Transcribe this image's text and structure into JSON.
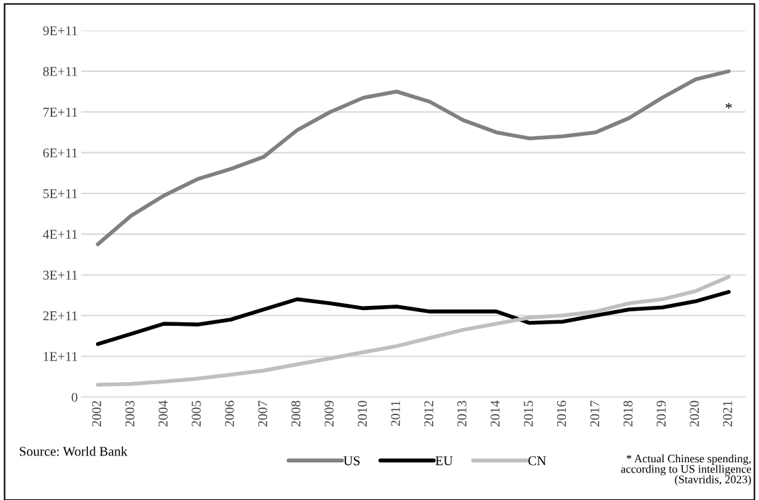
{
  "chart_data": {
    "type": "line",
    "categories": [
      "2002",
      "2003",
      "2004",
      "2005",
      "2006",
      "2007",
      "2008",
      "2009",
      "2010",
      "2011",
      "2012",
      "2013",
      "2014",
      "2015",
      "2016",
      "2017",
      "2018",
      "2019",
      "2020",
      "2021"
    ],
    "series": [
      {
        "name": "US",
        "color": "#808080",
        "values": [
          375000000000.0,
          445000000000.0,
          495000000000.0,
          535000000000.0,
          560000000000.0,
          590000000000.0,
          655000000000.0,
          700000000000.0,
          735000000000.0,
          750000000000.0,
          725000000000.0,
          680000000000.0,
          650000000000.0,
          635000000000.0,
          640000000000.0,
          650000000000.0,
          685000000000.0,
          735000000000.0,
          780000000000.0,
          800000000000.0
        ]
      },
      {
        "name": "EU",
        "color": "#000000",
        "values": [
          130000000000.0,
          155000000000.0,
          180000000000.0,
          178000000000.0,
          190000000000.0,
          215000000000.0,
          240000000000.0,
          230000000000.0,
          218000000000.0,
          222000000000.0,
          210000000000.0,
          210000000000.0,
          210000000000.0,
          182000000000.0,
          185000000000.0,
          200000000000.0,
          215000000000.0,
          220000000000.0,
          235000000000.0,
          258000000000.0
        ]
      },
      {
        "name": "CN",
        "color": "#bfbfbf",
        "values": [
          30000000000.0,
          32000000000.0,
          38000000000.0,
          45000000000.0,
          55000000000.0,
          65000000000.0,
          80000000000.0,
          95000000000.0,
          110000000000.0,
          125000000000.0,
          145000000000.0,
          165000000000.0,
          180000000000.0,
          195000000000.0,
          200000000000.0,
          210000000000.0,
          230000000000.0,
          240000000000.0,
          260000000000.0,
          295000000000.0
        ]
      }
    ],
    "ylim": [
      0,
      900000000000.0
    ],
    "yticks": [
      0,
      {
        "value": 100000000000.0,
        "label": "1E+11"
      },
      {
        "value": 200000000000.0,
        "label": "2E+11"
      },
      {
        "value": 300000000000.0,
        "label": "3E+11"
      },
      {
        "value": 400000000000.0,
        "label": "4E+11"
      },
      {
        "value": 500000000000.0,
        "label": "5E+11"
      },
      {
        "value": 600000000000.0,
        "label": "6E+11"
      },
      {
        "value": 700000000000.0,
        "label": "7E+11"
      },
      {
        "value": 800000000000.0,
        "label": "8E+11"
      },
      {
        "value": 900000000000.0,
        "label": "9E+11"
      }
    ],
    "grid": "y",
    "legend": "bottom",
    "marker": "none",
    "line_style": "solid",
    "annotations": [
      "*",
      "Source: World Bank",
      "* Actual Chinese spending,\naccording to US intelligence\n(Stavridis, 2023)"
    ]
  }
}
